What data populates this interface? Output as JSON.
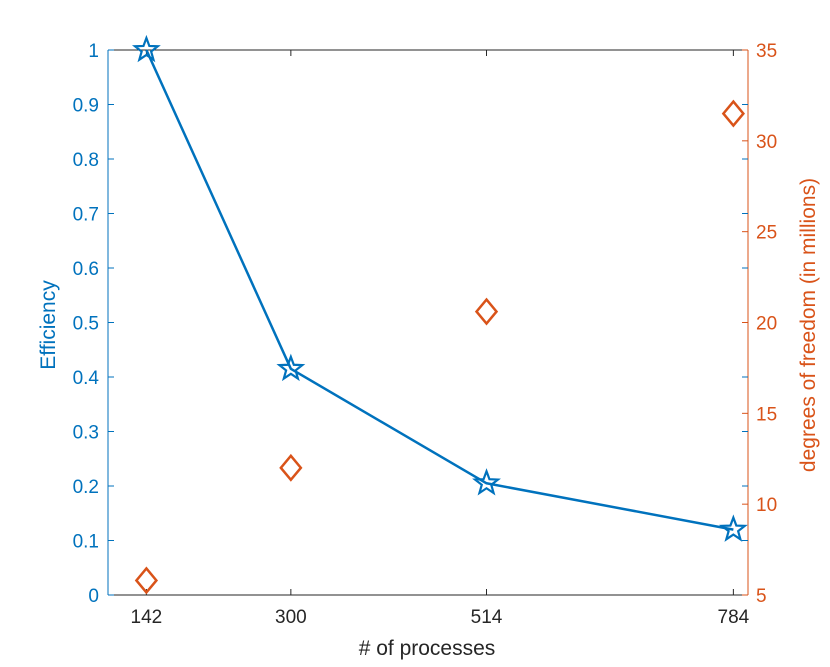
{
  "chart_data": {
    "type": "line",
    "xlabel": "# of processes",
    "categories": [
      "142",
      "300",
      "514",
      "784"
    ],
    "x": [
      142,
      300,
      514,
      784
    ],
    "xlim": [
      100,
      800
    ],
    "left_axis": {
      "label": "Efficiency",
      "ylim": [
        0,
        1
      ],
      "ticks": [
        "0",
        "0.1",
        "0.2",
        "0.3",
        "0.4",
        "0.5",
        "0.6",
        "0.7",
        "0.8",
        "0.9",
        "1"
      ],
      "color": "#0072BD"
    },
    "right_axis": {
      "label": "degrees of freedom (in millions)",
      "ylim": [
        5,
        35
      ],
      "ticks": [
        "5",
        "10",
        "15",
        "20",
        "25",
        "30",
        "35"
      ],
      "color": "#D95319"
    },
    "series": [
      {
        "axis": "left",
        "style": "line+pentagram",
        "color": "#0072BD",
        "values": [
          1.0,
          0.415,
          0.205,
          0.12
        ]
      },
      {
        "axis": "right",
        "style": "diamond",
        "color": "#D95319",
        "values": [
          5.8,
          12.0,
          20.6,
          31.5
        ]
      }
    ],
    "grid": false,
    "legend": "none"
  }
}
